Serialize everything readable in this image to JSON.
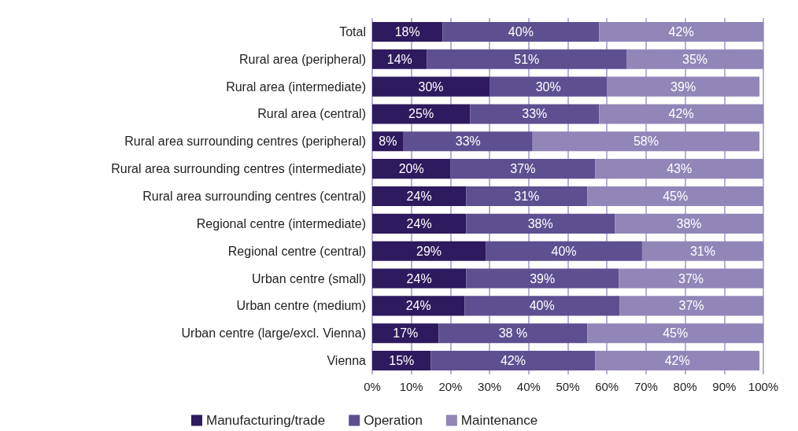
{
  "chart_data": {
    "type": "bar",
    "orientation": "horizontal",
    "stacked": true,
    "categories": [
      "Total",
      "Rural area (peripheral)",
      "Rural area (intermediate)",
      "Rural area (central)",
      "Rural area surrounding centres (peripheral)",
      "Rural area surrounding centres (intermediate)",
      "Rural area surrounding centres (central)",
      "Regional centre (intermediate)",
      "Regional centre (central)",
      "Urban centre (small)",
      "Urban centre (medium)",
      "Urban centre (large/excl. Vienna)",
      "Vienna"
    ],
    "series": [
      {
        "name": "Manufacturing/trade",
        "color": "#2e1a5e",
        "values": [
          18,
          14,
          30,
          25,
          8,
          20,
          24,
          24,
          29,
          24,
          23.6,
          17,
          15
        ],
        "value_labels": [
          "18%",
          "14%",
          "30%",
          "25%",
          "8%",
          "20%",
          "24%",
          "24%",
          "29%",
          "24%",
          "24%",
          "17%",
          "15%"
        ]
      },
      {
        "name": "Operation",
        "color": "#5e4f91",
        "values": [
          40,
          51,
          30,
          33,
          33,
          37,
          31,
          38,
          40,
          39,
          39.6,
          38,
          42
        ],
        "value_labels": [
          "40%",
          "51%",
          "30%",
          "33%",
          "33%",
          "37%",
          "31%",
          "38%",
          "40%",
          "39%",
          "40%",
          "38 %",
          "42%"
        ]
      },
      {
        "name": "Maintenance",
        "color": "#9286b8",
        "values": [
          42,
          35,
          39,
          42,
          58,
          43,
          45,
          38,
          31,
          37,
          36.8,
          45,
          42
        ],
        "value_labels": [
          "42%",
          "35%",
          "39%",
          "42%",
          "58%",
          "43%",
          "45%",
          "38%",
          "31%",
          "37%",
          "37%",
          "45%",
          "42%"
        ]
      }
    ],
    "xlim": [
      0,
      100
    ],
    "xticks": [
      {
        "value": 0,
        "label": "0%"
      },
      {
        "value": 10,
        "label": "10%"
      },
      {
        "value": 20,
        "label": "20%"
      },
      {
        "value": 30,
        "label": "30%"
      },
      {
        "value": 40,
        "label": "40%"
      },
      {
        "value": 50,
        "label": "50%"
      },
      {
        "value": 60,
        "label": "60%"
      },
      {
        "value": 70,
        "label": "70%"
      },
      {
        "value": 80,
        "label": "80%"
      },
      {
        "value": 90,
        "label": "90%"
      },
      {
        "value": 100,
        "label": "100%"
      }
    ],
    "grid": "x",
    "legend": "bottom"
  }
}
